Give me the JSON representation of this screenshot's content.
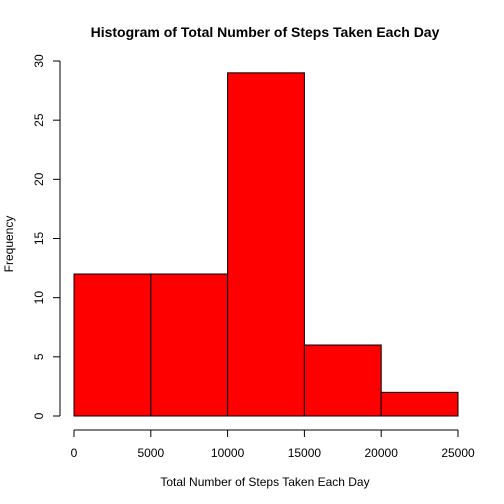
{
  "chart_data": {
    "type": "bar",
    "title": "Histogram of Total Number of Steps Taken Each Day",
    "xlabel": "Total Number of Steps Taken Each Day",
    "ylabel": "Frequency",
    "bins": [
      {
        "from": 0,
        "to": 5000,
        "count": 12
      },
      {
        "from": 5000,
        "to": 10000,
        "count": 12
      },
      {
        "from": 10000,
        "to": 15000,
        "count": 29
      },
      {
        "from": 15000,
        "to": 20000,
        "count": 6
      },
      {
        "from": 20000,
        "to": 25000,
        "count": 2
      }
    ],
    "xlim": [
      0,
      25000
    ],
    "ylim": [
      0,
      30
    ],
    "x_ticks": [
      "0",
      "5000",
      "10000",
      "15000",
      "20000",
      "25000"
    ],
    "y_ticks": [
      "0",
      "5",
      "10",
      "15",
      "20",
      "25",
      "30"
    ],
    "bar_color": "#ff0000",
    "border_color": "#000000",
    "grid": false,
    "legend": "none"
  }
}
